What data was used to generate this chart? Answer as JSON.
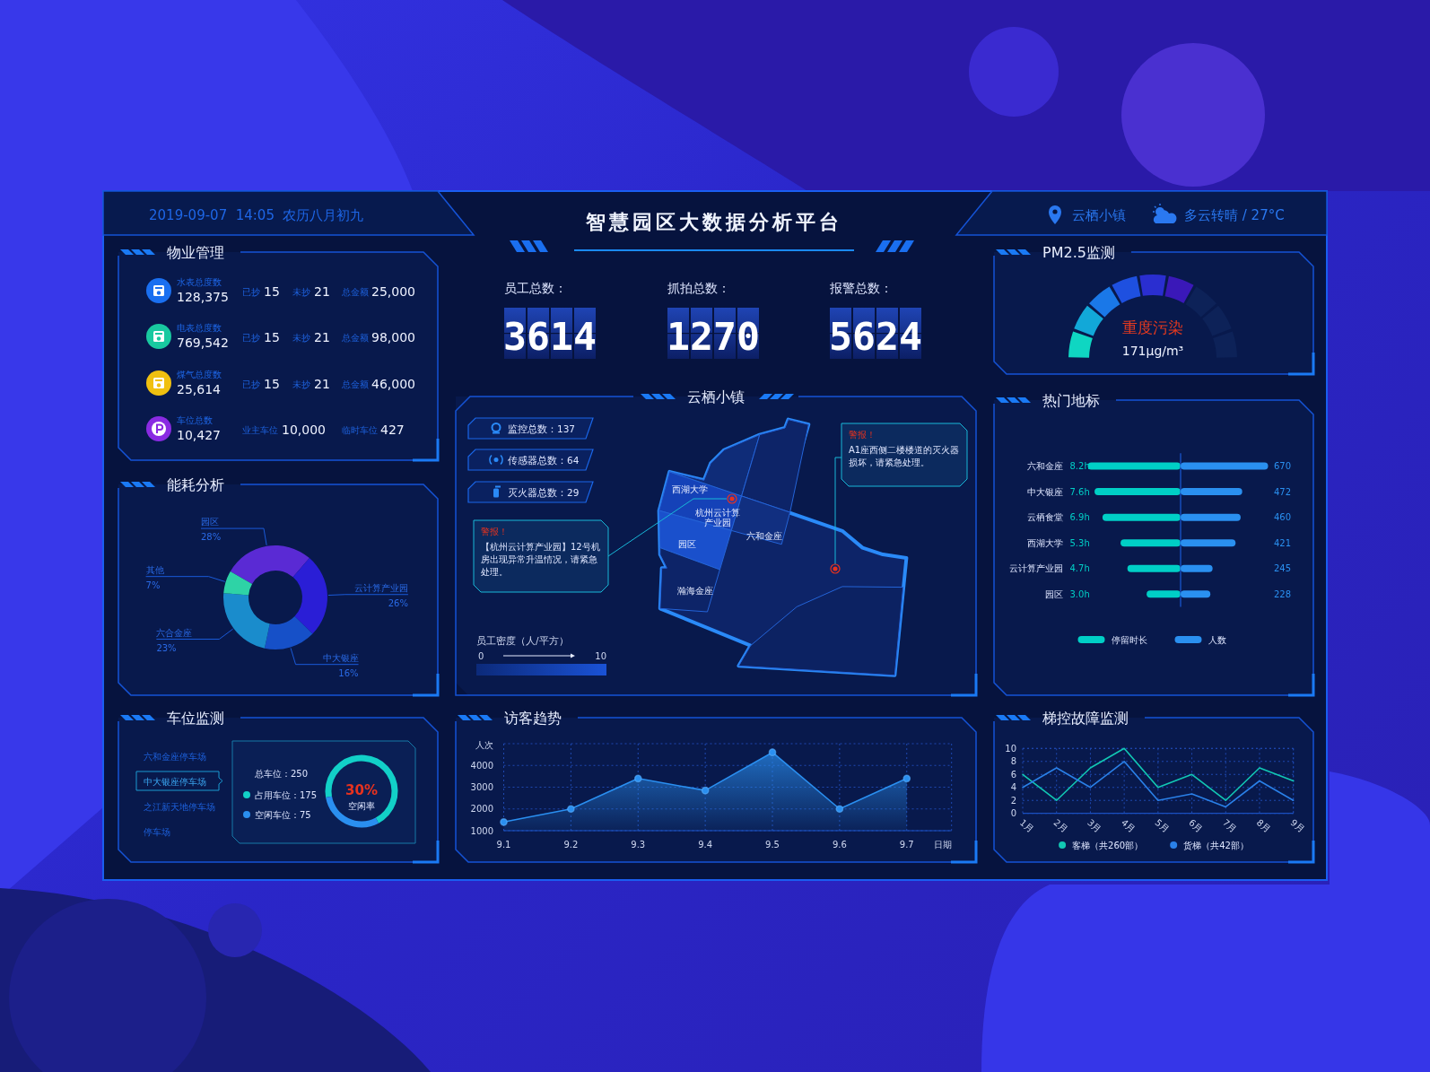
{
  "chart_data": [
    {
      "type": "other",
      "title": "智慧园区大数据分析平台",
      "annotations": [
        "2019-09-07  14:05  农历八月初九",
        "云栖小镇",
        "多云转晴 / 27°C"
      ]
    },
    {
      "type": "other",
      "title": "物业管理",
      "annotations": [
        "水表总度数",
        "128,375",
        "已抄",
        "15",
        "未抄",
        "21",
        "总金额",
        "25,000",
        "电表总度数",
        "769,542",
        "已抄",
        "15",
        "未抄",
        "21",
        "总金额",
        "98,000",
        "煤气总度数",
        "25,614",
        "已抄",
        "15",
        "未抄",
        "21",
        "总金额",
        "46,000",
        "车位总数",
        "10,427",
        "业主车位",
        "10,000",
        "临时车位",
        "427"
      ]
    },
    {
      "type": "other",
      "annotations": [
        "员工总数：",
        "3614",
        "抓拍总数：",
        "1270",
        "报警总数：",
        "5624"
      ]
    },
    {
      "type": "other",
      "title": "PM2.5监测",
      "annotations": [
        "重度污染",
        "171μg/m³"
      ]
    },
    {
      "type": "donut",
      "title": "能耗分析",
      "categories": [
        "园区",
        "云计算产业园",
        "中大银座",
        "六合金座",
        "其他"
      ],
      "values": [
        28,
        26,
        16,
        23,
        7
      ],
      "colors": [
        "#5a2ad4",
        "#2a1ed6",
        "#1650c8",
        "#1a8ccc",
        "#2ed3a6"
      ],
      "value_labels": [
        "28%",
        "26%",
        "16%",
        "23%",
        "7%"
      ]
    },
    {
      "type": "other",
      "title": "云栖小镇",
      "annotations": [
        "监控总数：137",
        "传感器总数：64",
        "灭火器总数：29",
        "员工密度（人/平方）",
        "0",
        "10",
        "警报！",
        "【杭州云计算产业园】12号机房出现异常升温情况，请紧急处理。",
        "警报！",
        "A1座西侧二楼楼道的灭火器损坏，请紧急处理。",
        "西湖大学",
        "杭州云计算产业园",
        "六和金座",
        "园区",
        "瀚海金座"
      ]
    },
    {
      "type": "bar",
      "title": "热门地标",
      "orientation": "horizontal",
      "categories": [
        "六和金座",
        "中大银座",
        "云栖食堂",
        "西湖大学",
        "云计算产业园",
        "园区"
      ],
      "series": [
        {
          "name": "停留时长",
          "color": "#00cfc6",
          "values": [
            8.2,
            7.6,
            6.9,
            5.3,
            4.7,
            3.0
          ],
          "value_labels": [
            "8.2h",
            "7.6h",
            "6.9h",
            "5.3h",
            "4.7h",
            "3.0h"
          ]
        }
      ],
      "legend": "bottom"
    },
    {
      "type": "bar",
      "orientation": "horizontal",
      "categories": [
        null,
        null,
        null,
        null,
        null,
        null
      ],
      "series": [
        {
          "name": "人数",
          "color": "#2a90f0",
          "values": [
            670,
            472,
            460,
            421,
            245,
            228
          ],
          "value_labels": [
            "670",
            "472",
            "460",
            "421",
            "245",
            "228"
          ]
        }
      ],
      "legend": "bottom"
    },
    {
      "type": "donut",
      "title": "车位监测",
      "categories": [
        "占用车位：175",
        "空闲车位：75"
      ],
      "values": [
        175,
        75
      ],
      "colors": [
        "#12d0c8",
        "#2a8ff0"
      ],
      "legend": "left",
      "annotations": [
        "六和金座停车场",
        "中大银座停车场",
        "之江新天地停车场",
        "停车场",
        "总车位：250",
        "30%",
        "空闲率"
      ]
    },
    {
      "type": "area",
      "title": "访客趋势",
      "categories": [
        "9.1",
        "9.2",
        "9.3",
        "9.4",
        "9.5",
        "9.6",
        "9.7"
      ],
      "values": [
        1400,
        2000,
        3400,
        2850,
        4600,
        2000,
        3400
      ],
      "color": "#2a8ff0",
      "ylabel": "人次",
      "xlabel": "日期",
      "ylim": [
        1000,
        5000
      ],
      "yticks": [
        1000,
        2000,
        3000,
        4000
      ],
      "grid": true,
      "marker": "circle"
    },
    {
      "type": "line",
      "title": "梯控故障监测",
      "categories": [
        "1月",
        "2月",
        "3月",
        "4月",
        "5月",
        "6月",
        "7月",
        "8月",
        "9月"
      ],
      "series": [
        {
          "name": "客梯（共260部）",
          "color": "#12c8b4",
          "values": [
            6,
            2,
            7,
            10,
            4,
            6,
            2,
            7,
            5
          ]
        },
        {
          "name": "货梯（共42部）",
          "color": "#2a80e8",
          "values": [
            4,
            7,
            4,
            8,
            2,
            3,
            1,
            5,
            2
          ]
        }
      ],
      "ylim": [
        0,
        10
      ],
      "yticks": [
        0,
        2,
        4,
        6,
        8,
        10
      ],
      "grid": true,
      "legend": "bottom"
    }
  ]
}
